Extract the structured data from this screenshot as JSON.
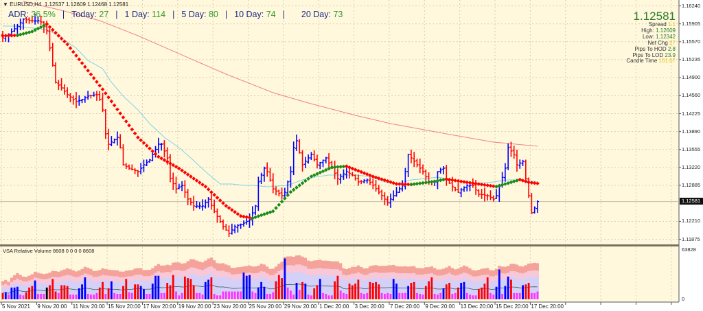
{
  "header": {
    "symbol": "EURUSD,H4",
    "ohlc": "1.12537 1.12609 1.12468 1.12581"
  },
  "adr": {
    "adr_label": "ADR:",
    "adr_value": "36.5%",
    "today_label": "Today:",
    "today_value": "27",
    "d1_label": "1 Day:",
    "d1_value": "114",
    "d5_label": "5 Day:",
    "d5_value": "80",
    "d10_label": "10 Day:",
    "d10_value": "74",
    "d20_label": "20 Day:",
    "d20_value": "73",
    "separator": "|"
  },
  "info_panel": {
    "price": "1.12581",
    "rows": [
      {
        "label": "Spread",
        "value": "1.1",
        "color": "y"
      },
      {
        "label": "High:",
        "value": "1.12609",
        "color": "g"
      },
      {
        "label": "Low:",
        "value": "1.12342",
        "color": "g"
      },
      {
        "label": "Net Chg",
        "value": "27",
        "color": "y"
      },
      {
        "label": "Pips To HOD",
        "value": "2.8",
        "color": "g"
      },
      {
        "label": "Pips To LOD",
        "value": "23.9",
        "color": "g"
      },
      {
        "label": "Candle Time",
        "value": "101:07",
        "color": "y"
      }
    ]
  },
  "current_price_label": "1.12581",
  "volume_panel": {
    "title": "VSA Relative Volume 8608 0 0 0 0 8608",
    "axis_max_label": "63828",
    "axis_min_label": "0"
  },
  "colors": {
    "background": "#fff8dc",
    "up": "#0000ff",
    "down": "#ff0000",
    "low_volume": "#ff33ff",
    "trend_up": "#1a8a1a",
    "trend_down": "#ff0000",
    "ma_fast": "#7fd3e8",
    "ma_slow": "#f08080"
  },
  "chart_data": {
    "type": "line",
    "subtype": "ohlc-bars",
    "title": "EURUSD,H4",
    "ylim": [
      1.11875,
      1.1624
    ],
    "y_ticks": [
      "1.16240",
      "1.15905",
      "1.15570",
      "1.15235",
      "1.14900",
      "1.14560",
      "1.14225",
      "1.13890",
      "1.13555",
      "1.13220",
      "1.12885",
      "1.12210",
      "1.11875"
    ],
    "x_ticks": [
      "5 Nov 2021",
      "9 Nov 20:00",
      "11 Nov 20:00",
      "15 Nov 20:00",
      "17 Nov 20:00",
      "19 Nov 20:00",
      "23 Nov 20:00",
      "25 Nov 20:00",
      "29 Nov 20:00",
      "1 Dec 20:00",
      "3 Dec 20:00",
      "7 Dec 20:00",
      "9 Dec 20:00",
      "13 Dec 20:00",
      "15 Dec 20:00",
      "17 Dec 20:00"
    ],
    "bars_per_x_tick": 12,
    "close_keypoints": [
      [
        0,
        1.15644
      ],
      [
        2,
        1.15708
      ],
      [
        5,
        1.15863
      ],
      [
        7,
        1.15991
      ],
      [
        9,
        1.15965
      ],
      [
        12,
        1.15965
      ],
      [
        13,
        1.1594
      ],
      [
        15,
        1.15773
      ],
      [
        16,
        1.15452
      ],
      [
        17,
        1.15131
      ],
      [
        18,
        1.1481
      ],
      [
        20,
        1.14707
      ],
      [
        22,
        1.14579
      ],
      [
        25,
        1.1445
      ],
      [
        27,
        1.14489
      ],
      [
        29,
        1.14553
      ],
      [
        32,
        1.14579
      ],
      [
        33,
        1.14489
      ],
      [
        34,
        1.14296
      ],
      [
        35,
        1.13847
      ],
      [
        36,
        1.13654
      ],
      [
        39,
        1.13782
      ],
      [
        40,
        1.1359
      ],
      [
        41,
        1.13269
      ],
      [
        43,
        1.13205
      ],
      [
        46,
        1.1314
      ],
      [
        48,
        1.13269
      ],
      [
        50,
        1.13359
      ],
      [
        53,
        1.13654
      ],
      [
        54,
        1.13654
      ],
      [
        56,
        1.13397
      ],
      [
        57,
        1.13012
      ],
      [
        59,
        1.12819
      ],
      [
        61,
        1.12884
      ],
      [
        63,
        1.12627
      ],
      [
        65,
        1.12498
      ],
      [
        68,
        1.12498
      ],
      [
        70,
        1.12627
      ],
      [
        72,
        1.12396
      ],
      [
        75,
        1.12113
      ],
      [
        77,
        1.11985
      ],
      [
        79,
        1.12113
      ],
      [
        82,
        1.12177
      ],
      [
        84,
        1.12242
      ],
      [
        86,
        1.12498
      ],
      [
        87,
        1.12948
      ],
      [
        89,
        1.13205
      ],
      [
        90,
        1.1314
      ],
      [
        92,
        1.12819
      ],
      [
        95,
        1.12691
      ],
      [
        96,
        1.12755
      ],
      [
        98,
        1.1314
      ],
      [
        99,
        1.1359
      ],
      [
        100,
        1.13718
      ],
      [
        102,
        1.13269
      ],
      [
        104,
        1.13397
      ],
      [
        105,
        1.13461
      ],
      [
        107,
        1.13269
      ],
      [
        110,
        1.13397
      ],
      [
        112,
        1.13205
      ],
      [
        114,
        1.13012
      ],
      [
        117,
        1.1314
      ],
      [
        119,
        1.13076
      ],
      [
        121,
        1.12948
      ],
      [
        124,
        1.12986
      ],
      [
        126,
        1.12884
      ],
      [
        128,
        1.12755
      ],
      [
        131,
        1.12563
      ],
      [
        133,
        1.12691
      ],
      [
        136,
        1.12884
      ],
      [
        137,
        1.1314
      ],
      [
        138,
        1.13461
      ],
      [
        139,
        1.13397
      ],
      [
        141,
        1.13269
      ],
      [
        143,
        1.1314
      ],
      [
        145,
        1.12948
      ],
      [
        147,
        1.12948
      ],
      [
        148,
        1.1314
      ],
      [
        150,
        1.13205
      ],
      [
        151,
        1.12986
      ],
      [
        153,
        1.12858
      ],
      [
        155,
        1.12755
      ],
      [
        158,
        1.12884
      ],
      [
        160,
        1.12884
      ],
      [
        162,
        1.12717
      ],
      [
        165,
        1.12691
      ],
      [
        167,
        1.12627
      ],
      [
        168,
        1.12691
      ],
      [
        171,
        1.13205
      ],
      [
        172,
        1.1359
      ],
      [
        174,
        1.13461
      ],
      [
        175,
        1.13269
      ],
      [
        177,
        1.13333
      ],
      [
        179,
        1.12691
      ],
      [
        180,
        1.1237
      ],
      [
        181,
        1.1246
      ],
      [
        182,
        1.12581
      ]
    ],
    "trend_dots": [
      {
        "color": "down",
        "points": [
          [
            0,
            1.1568
          ],
          [
            5,
            1.1569
          ]
        ]
      },
      {
        "color": "up",
        "points": [
          [
            5,
            1.1569
          ],
          [
            10,
            1.1576
          ],
          [
            15,
            1.159
          ]
        ]
      },
      {
        "color": "down",
        "points": [
          [
            15,
            1.159
          ],
          [
            22,
            1.1552
          ],
          [
            34,
            1.1468
          ],
          [
            46,
            1.1378
          ],
          [
            53,
            1.1342
          ],
          [
            60,
            1.132
          ],
          [
            69,
            1.1286
          ],
          [
            76,
            1.125
          ],
          [
            81,
            1.1231
          ],
          [
            85,
            1.1227
          ]
        ]
      },
      {
        "color": "up",
        "points": [
          [
            85,
            1.1227
          ],
          [
            92,
            1.124
          ],
          [
            98,
            1.1276
          ],
          [
            105,
            1.1305
          ],
          [
            112,
            1.1322
          ],
          [
            117,
            1.1324
          ]
        ]
      },
      {
        "color": "down",
        "points": [
          [
            117,
            1.1324
          ],
          [
            126,
            1.1305
          ],
          [
            134,
            1.1291
          ],
          [
            139,
            1.129
          ]
        ]
      },
      {
        "color": "up",
        "points": [
          [
            139,
            1.129
          ],
          [
            146,
            1.1295
          ],
          [
            151,
            1.13
          ]
        ]
      },
      {
        "color": "down",
        "points": [
          [
            151,
            1.13
          ],
          [
            158,
            1.1294
          ],
          [
            168,
            1.1286
          ]
        ]
      },
      {
        "color": "up",
        "points": [
          [
            168,
            1.1286
          ],
          [
            176,
            1.1299
          ]
        ]
      },
      {
        "color": "down",
        "points": [
          [
            176,
            1.1299
          ],
          [
            179,
            1.1294
          ],
          [
            182,
            1.1292
          ]
        ]
      }
    ],
    "ma_fast": [
      [
        0,
        1.15863
      ],
      [
        4,
        1.15863
      ],
      [
        8,
        1.15837
      ],
      [
        13,
        1.15811
      ],
      [
        16,
        1.15773
      ],
      [
        20,
        1.15644
      ],
      [
        25,
        1.15452
      ],
      [
        29,
        1.1522
      ],
      [
        34,
        1.15066
      ],
      [
        37,
        1.1481
      ],
      [
        41,
        1.14553
      ],
      [
        46,
        1.14296
      ],
      [
        50,
        1.14039
      ],
      [
        55,
        1.13782
      ],
      [
        60,
        1.1359
      ],
      [
        64,
        1.13397
      ],
      [
        69,
        1.1314
      ],
      [
        74,
        1.12909
      ],
      [
        78,
        1.12909
      ],
      [
        82,
        1.12884
      ],
      [
        85,
        1.12884
      ],
      [
        90,
        1.12858
      ],
      [
        97,
        1.12884
      ],
      [
        102,
        1.12986
      ],
      [
        106,
        1.13038
      ],
      [
        111,
        1.13076
      ],
      [
        116,
        1.13076
      ],
      [
        120,
        1.13076
      ],
      [
        125,
        1.1305
      ],
      [
        130,
        1.12948
      ],
      [
        134,
        1.12909
      ],
      [
        139,
        1.12986
      ],
      [
        144,
        1.13012
      ],
      [
        148,
        1.13038
      ],
      [
        153,
        1.12986
      ],
      [
        158,
        1.12948
      ],
      [
        162,
        1.12922
      ],
      [
        167,
        1.12948
      ],
      [
        172,
        1.12986
      ],
      [
        176,
        1.12986
      ],
      [
        182,
        1.12948
      ]
    ],
    "ma_slow": [
      [
        7,
        1.16325
      ],
      [
        20,
        1.16158
      ],
      [
        33,
        1.15965
      ],
      [
        46,
        1.15683
      ],
      [
        62,
        1.15298
      ],
      [
        76,
        1.14964
      ],
      [
        92,
        1.14617
      ],
      [
        104,
        1.14424
      ],
      [
        120,
        1.14193
      ],
      [
        132,
        1.14039
      ],
      [
        151,
        1.13847
      ],
      [
        167,
        1.13693
      ],
      [
        182,
        1.13616
      ]
    ],
    "volume_thousands": [
      8,
      9,
      6,
      15,
      15,
      16,
      6,
      5,
      9,
      15,
      17,
      24,
      7,
      7,
      7,
      15,
      18,
      26,
      10,
      8,
      18,
      18,
      17,
      6,
      6,
      6,
      14,
      19,
      28,
      7,
      6,
      6,
      8,
      15,
      22,
      7,
      14,
      23,
      8,
      7,
      7,
      17,
      26,
      9,
      8,
      19,
      19,
      17,
      13,
      7,
      7,
      20,
      30,
      30,
      8,
      8,
      21,
      18,
      31,
      10,
      5,
      8,
      29,
      27,
      26,
      18,
      8,
      8,
      6,
      22,
      25,
      28,
      7,
      5,
      5,
      10,
      10,
      10,
      10,
      10,
      10,
      10,
      34,
      30,
      31,
      10,
      8,
      15,
      22,
      16,
      7,
      7,
      9,
      23,
      31,
      27,
      52,
      15,
      11,
      6,
      21,
      12,
      22,
      20,
      6,
      5,
      14,
      18,
      26,
      8,
      7,
      5,
      5,
      23,
      30,
      11,
      8,
      7,
      20,
      18,
      20,
      25,
      8,
      7,
      8,
      22,
      21,
      22,
      19,
      8,
      7,
      8,
      7,
      26,
      20,
      8,
      8,
      8,
      17,
      21,
      22,
      8,
      7,
      6,
      17,
      23,
      28,
      7,
      6,
      8,
      14,
      19,
      21,
      7,
      8,
      15,
      21,
      22,
      8,
      6,
      5,
      5,
      13,
      15,
      20,
      28,
      8,
      6,
      16,
      38,
      7,
      17,
      29,
      25,
      8,
      8,
      8,
      18,
      19,
      21,
      8,
      8,
      10
    ],
    "volume_ylim": [
      0,
      63828
    ]
  }
}
